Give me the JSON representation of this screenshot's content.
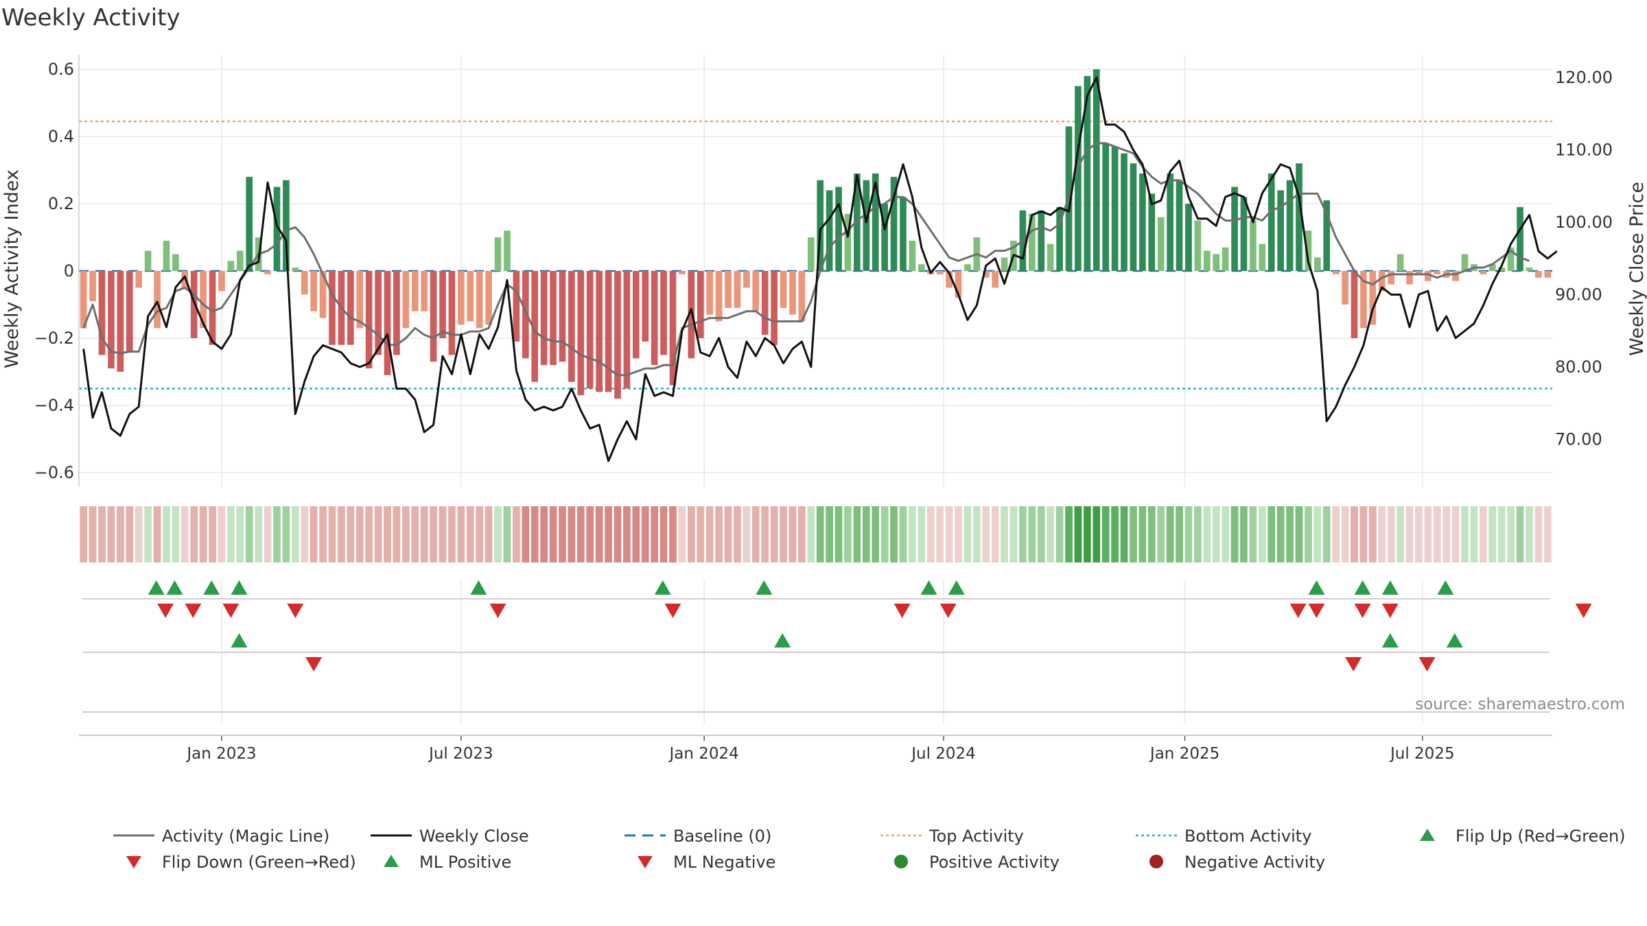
{
  "chart_data": {
    "type": "bar",
    "title": "Weekly Activity",
    "ylabel_left": "Weekly Activity Index",
    "ylabel_right": "Weekly Close Price",
    "source": "source: sharemaestro.com",
    "ylim_left": [
      -0.64,
      0.6
    ],
    "ylim_right": [
      63.5,
      121.5
    ],
    "left_ticks": [
      0.6,
      0.4,
      0.2,
      0,
      -0.2,
      -0.4,
      -0.6
    ],
    "left_tick_labels": [
      "0.6",
      "0.4",
      "0.2",
      "0",
      "−0.2",
      "−0.4",
      "−0.6"
    ],
    "right_ticks": [
      120,
      110,
      100,
      90,
      80,
      70
    ],
    "right_tick_labels": [
      "120.00",
      "110.00",
      "100.00",
      "90.00",
      "80.00",
      "70.00"
    ],
    "x_tick_labels": [
      "Jan 2023",
      "Jul 2023",
      "Jan 2024",
      "Jul 2024",
      "Jan 2025",
      "Jul 2025"
    ],
    "x_tick_weeks": [
      15,
      41,
      67.4,
      93.4,
      119.6,
      145.4
    ],
    "top_activity": 0.445,
    "bottom_activity": -0.35,
    "activity": [
      -0.17,
      -0.09,
      -0.25,
      -0.29,
      -0.3,
      -0.24,
      -0.05,
      0.06,
      -0.17,
      0.09,
      0.05,
      -0.05,
      -0.2,
      -0.17,
      -0.22,
      -0.06,
      0.03,
      0.06,
      0.28,
      0.1,
      -0.01,
      0.25,
      0.27,
      0.01,
      -0.07,
      -0.12,
      -0.14,
      -0.22,
      -0.22,
      -0.22,
      -0.17,
      -0.29,
      -0.25,
      -0.31,
      -0.25,
      -0.17,
      -0.12,
      -0.12,
      -0.27,
      -0.2,
      -0.25,
      -0.16,
      -0.15,
      -0.17,
      -0.16,
      0.1,
      0.12,
      -0.21,
      -0.26,
      -0.33,
      -0.28,
      -0.28,
      -0.27,
      -0.33,
      -0.37,
      -0.35,
      -0.36,
      -0.36,
      -0.38,
      -0.35,
      -0.26,
      -0.21,
      -0.28,
      -0.25,
      -0.34,
      -0.01,
      -0.26,
      -0.2,
      -0.13,
      -0.15,
      -0.11,
      -0.11,
      -0.05,
      -0.12,
      -0.19,
      -0.22,
      -0.11,
      -0.13,
      -0.15,
      0.1,
      0.27,
      0.24,
      0.25,
      0.17,
      0.29,
      0.27,
      0.29,
      0.2,
      0.28,
      0.22,
      0.09,
      0.02,
      -0.01,
      -0.01,
      -0.05,
      -0.08,
      0.02,
      0.1,
      -0.02,
      -0.05,
      0.04,
      0.09,
      0.18,
      0.17,
      0.18,
      0.08,
      0.19,
      0.43,
      0.55,
      0.58,
      0.6,
      0.38,
      0.37,
      0.35,
      0.32,
      0.29,
      0.23,
      0.16,
      0.29,
      0.27,
      0.2,
      0.15,
      0.06,
      0.05,
      0.07,
      0.25,
      0.22,
      0.15,
      0.08,
      0.29,
      0.24,
      0.27,
      0.32,
      0.12,
      0.04,
      0.21,
      -0.01,
      -0.1,
      -0.2,
      -0.17,
      -0.16,
      -0.06,
      -0.04,
      0.05,
      -0.04,
      -0.01,
      -0.03,
      -0.01,
      -0.02,
      -0.03,
      0.05,
      0.02,
      -0.01,
      0.02,
      0.01,
      0.07,
      0.19,
      0.01,
      -0.02,
      -0.02
    ],
    "magic_line": [
      -0.17,
      -0.1,
      -0.2,
      -0.24,
      -0.245,
      -0.24,
      -0.24,
      -0.16,
      -0.12,
      -0.11,
      -0.06,
      -0.05,
      -0.07,
      -0.1,
      -0.12,
      -0.11,
      -0.07,
      -0.03,
      0.01,
      0.05,
      0.06,
      0.08,
      0.12,
      0.13,
      0.1,
      0.05,
      -0.01,
      -0.07,
      -0.11,
      -0.14,
      -0.15,
      -0.17,
      -0.19,
      -0.22,
      -0.22,
      -0.2,
      -0.17,
      -0.19,
      -0.2,
      -0.18,
      -0.19,
      -0.19,
      -0.18,
      -0.18,
      -0.17,
      -0.1,
      -0.04,
      -0.06,
      -0.12,
      -0.18,
      -0.2,
      -0.21,
      -0.21,
      -0.23,
      -0.25,
      -0.26,
      -0.27,
      -0.29,
      -0.31,
      -0.31,
      -0.3,
      -0.29,
      -0.29,
      -0.28,
      -0.28,
      -0.17,
      -0.16,
      -0.15,
      -0.14,
      -0.14,
      -0.14,
      -0.13,
      -0.12,
      -0.12,
      -0.14,
      -0.15,
      -0.15,
      -0.15,
      -0.15,
      -0.09,
      0.0,
      0.07,
      0.1,
      0.12,
      0.15,
      0.17,
      0.19,
      0.2,
      0.22,
      0.22,
      0.2,
      0.16,
      0.12,
      0.08,
      0.04,
      0.03,
      0.04,
      0.05,
      0.04,
      0.06,
      0.06,
      0.07,
      0.09,
      0.12,
      0.13,
      0.12,
      0.14,
      0.22,
      0.31,
      0.36,
      0.38,
      0.38,
      0.37,
      0.36,
      0.35,
      0.31,
      0.28,
      0.26,
      0.27,
      0.27,
      0.25,
      0.23,
      0.2,
      0.17,
      0.15,
      0.15,
      0.16,
      0.16,
      0.15,
      0.18,
      0.19,
      0.21,
      0.23,
      0.23,
      0.23,
      0.17,
      0.1,
      0.05,
      0.0,
      -0.03,
      -0.04,
      -0.02,
      -0.01,
      -0.01,
      -0.01,
      -0.01,
      -0.01,
      -0.02,
      -0.01,
      -0.01,
      0.0,
      0.01,
      0.01,
      0.02,
      0.04,
      0.06,
      0.04,
      0.03
    ],
    "weekly_close": [
      82.5,
      73.0,
      76.5,
      71.5,
      70.5,
      73.5,
      74.5,
      87.0,
      89.0,
      85.5,
      91.0,
      92.5,
      89.0,
      86.0,
      83.5,
      82.5,
      84.5,
      92.0,
      94.0,
      94.5,
      105.5,
      99.5,
      97.5,
      73.5,
      78.0,
      81.5,
      83.0,
      82.5,
      82.0,
      80.5,
      80.0,
      80.5,
      82.5,
      84.5,
      77.0,
      77.0,
      75.5,
      71.0,
      72.0,
      81.5,
      79.0,
      84.5,
      79.0,
      84.5,
      82.5,
      85.5,
      92.0,
      79.5,
      75.5,
      74.0,
      74.5,
      74.0,
      74.5,
      77.0,
      74.0,
      71.5,
      72.0,
      67.0,
      70.0,
      72.5,
      70.0,
      79.0,
      76.0,
      76.5,
      76.0,
      85.0,
      88.0,
      82.0,
      81.5,
      84.0,
      80.0,
      78.5,
      83.5,
      81.5,
      84.0,
      83.0,
      80.5,
      82.5,
      83.5,
      80.0,
      99.0,
      100.5,
      102.5,
      98.0,
      106.5,
      100.0,
      105.5,
      99.0,
      103.5,
      108.0,
      103.5,
      96.5,
      93.0,
      94.5,
      93.0,
      90.0,
      86.5,
      88.5,
      94.0,
      95.0,
      91.5,
      95.5,
      95.0,
      101.0,
      101.5,
      101.0,
      102.0,
      101.5,
      110.0,
      117.5,
      120.0,
      113.5,
      113.5,
      112.5,
      110.0,
      108.0,
      102.5,
      103.0,
      107.0,
      108.5,
      103.5,
      100.5,
      100.5,
      99.5,
      103.5,
      104.0,
      103.5,
      100.0,
      104.0,
      106.0,
      108.0,
      107.5,
      103.5,
      94.5,
      90.5,
      72.5,
      74.5,
      77.5,
      80.0,
      83.0,
      88.0,
      91.0,
      90.0,
      90.0,
      85.5,
      90.0,
      90.5,
      85.0,
      87.0,
      84.0,
      85.0,
      86.0,
      88.5,
      91.5,
      94.0,
      97.0,
      99.0,
      101.0,
      96.0,
      95.0,
      96.0
    ]
  },
  "heat_strip": [
    -2,
    -2,
    -2,
    -2,
    -2,
    -2,
    -1,
    1,
    -2,
    1,
    1,
    -1,
    -2,
    -2,
    -2,
    -1,
    1,
    1,
    2,
    1,
    -1,
    2,
    2,
    1,
    -1,
    -2,
    -2,
    -2,
    -2,
    -2,
    -2,
    -2,
    -2,
    -2,
    -2,
    -2,
    -2,
    -2,
    -2,
    -2,
    -2,
    -2,
    -2,
    -2,
    -2,
    1,
    2,
    -2,
    -3,
    -3,
    -3,
    -3,
    -3,
    -3,
    -3,
    -3,
    -3,
    -3,
    -3,
    -3,
    -3,
    -3,
    -3,
    -3,
    -3,
    -1,
    -2,
    -2,
    -2,
    -2,
    -2,
    -2,
    -1,
    -2,
    -2,
    -2,
    -2,
    -2,
    -2,
    1,
    3,
    3,
    3,
    2,
    3,
    3,
    3,
    2,
    3,
    2,
    1,
    1,
    -1,
    -1,
    -1,
    -1,
    1,
    1,
    -1,
    -1,
    1,
    1,
    2,
    2,
    2,
    1,
    2,
    4,
    5,
    5,
    5,
    4,
    4,
    4,
    3,
    3,
    3,
    2,
    3,
    3,
    2,
    2,
    1,
    1,
    1,
    3,
    3,
    2,
    1,
    3,
    3,
    3,
    3,
    2,
    1,
    2,
    -1,
    -1,
    -2,
    -2,
    -2,
    -1,
    -1,
    1,
    -1,
    -1,
    -1,
    -1,
    -1,
    -1,
    1,
    1,
    -1,
    1,
    1,
    1,
    2,
    1,
    -1,
    -1
  ],
  "markers": {
    "flip_up_weeks": [
      7.9,
      9.9,
      13.9,
      16.9,
      42.9,
      62.9,
      73.9,
      91.8,
      94.8,
      133.9,
      138.9,
      141.9,
      147.9
    ],
    "flip_down_weeks": [
      8.9,
      11.9,
      16.0,
      23.0,
      45.0,
      64.0,
      88.9,
      93.9,
      131.9,
      133.9,
      138.9,
      141.9,
      162.9
    ],
    "ml_positive_weeks": [
      16.9,
      75.9,
      141.9,
      148.9
    ],
    "ml_negative_weeks": [
      25.0,
      137.9,
      145.9
    ]
  },
  "legend": [
    {
      "label": "Activity (Magic Line)",
      "symbol": "line",
      "color": "#6e6e6e"
    },
    {
      "label": "Weekly Close",
      "symbol": "line",
      "color": "#111111"
    },
    {
      "label": "Baseline (0)",
      "symbol": "dash",
      "color": "#1f77b4"
    },
    {
      "label": "Top Activity",
      "symbol": "dot-line",
      "color": "#f0a463"
    },
    {
      "label": "Bottom Activity",
      "symbol": "dot-line",
      "color": "#22b8cf"
    },
    {
      "label": "Flip Up (Red→Green)",
      "symbol": "triangle-up",
      "color": "#2a9d48"
    },
    {
      "label": "Flip Down (Green→Red)",
      "symbol": "triangle-down",
      "color": "#d42a2a"
    },
    {
      "label": "ML Positive",
      "symbol": "triangle-up",
      "color": "#2a9d48"
    },
    {
      "label": "ML Negative",
      "symbol": "triangle-down",
      "color": "#d42a2a"
    },
    {
      "label": "Positive Activity",
      "symbol": "circle",
      "color": "#2a8a2a"
    },
    {
      "label": "Negative Activity",
      "symbol": "circle",
      "color": "#a52020"
    }
  ],
  "colors": {
    "pos_strong": "#2e8b57",
    "pos_light": "#7fbf7b",
    "neg_strong": "#cd5c5c",
    "neg_light": "#e9967a",
    "grid": "#e8e8e8",
    "axis": "#cccccc"
  }
}
